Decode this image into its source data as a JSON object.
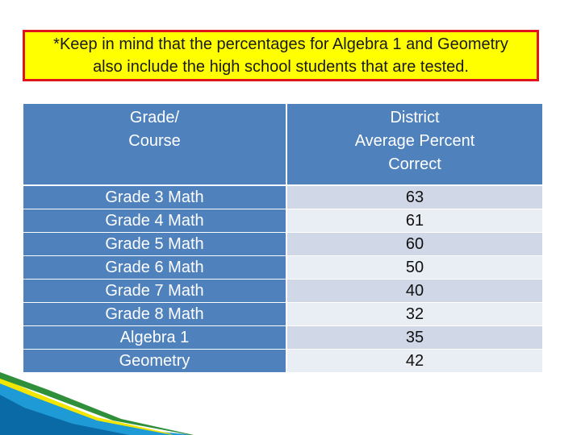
{
  "note": {
    "line1": "*Keep in mind that the percentages for Algebra 1 and Geometry",
    "line2": "also include the high school students that are tested."
  },
  "table": {
    "header": {
      "course_line1": "Grade/",
      "course_line2": "Course",
      "score_line1": "District",
      "score_line2": "Average Percent",
      "score_line3": "Correct"
    },
    "rows": [
      {
        "course": "Grade 3 Math",
        "value": "63"
      },
      {
        "course": "Grade 4 Math",
        "value": "61"
      },
      {
        "course": "Grade 5 Math",
        "value": "60"
      },
      {
        "course": "Grade 6 Math",
        "value": "50"
      },
      {
        "course": "Grade 7 Math",
        "value": "40"
      },
      {
        "course": "Grade 8 Math",
        "value": "32"
      },
      {
        "course": "Algebra 1",
        "value": "35"
      },
      {
        "course": "Geometry",
        "value": "42"
      }
    ]
  },
  "colors": {
    "header_blue": "#4f81bd",
    "row_light": "#d0d8e8",
    "row_lighter": "#e9edf4",
    "note_bg": "#ffff00",
    "note_border": "#e0141e"
  }
}
